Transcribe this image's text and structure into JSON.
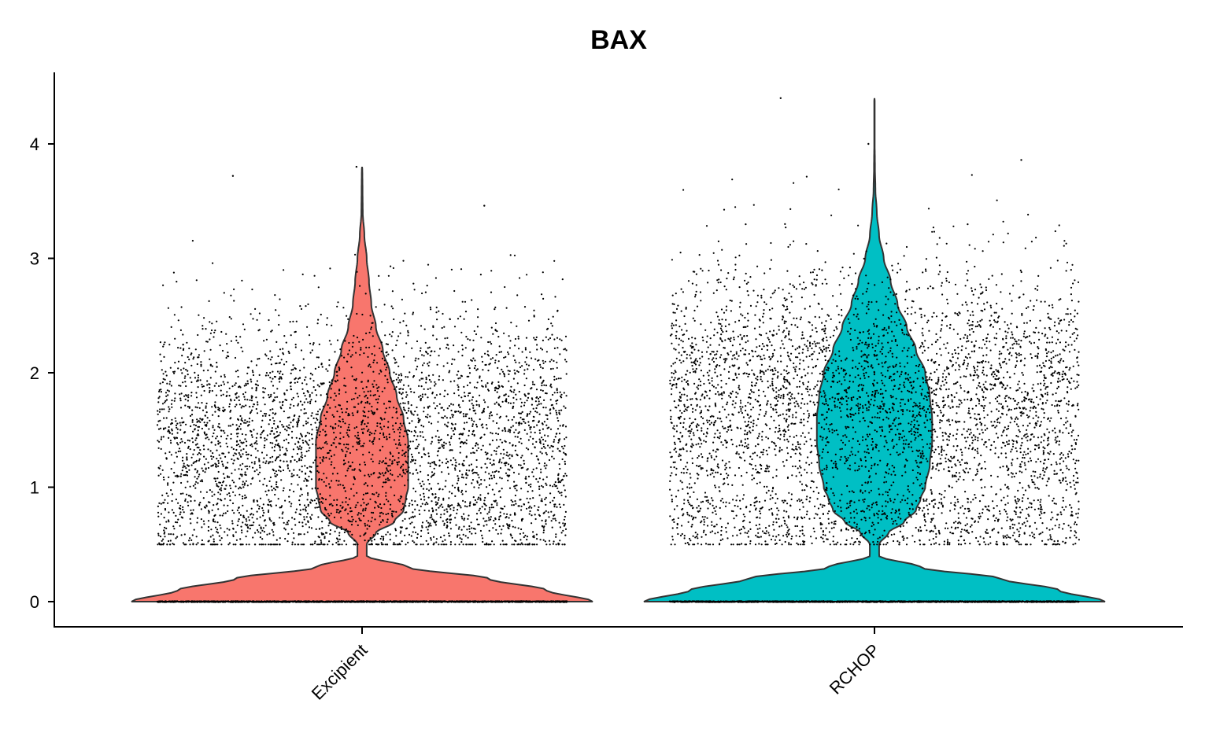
{
  "chart_data": {
    "type": "violin",
    "title": "BAX",
    "xlabel": "",
    "ylabel": "",
    "categories": [
      "Excipient",
      "RCHOP"
    ],
    "colors": {
      "Excipient": "#F8766D",
      "RCHOP": "#00BFC4"
    },
    "ylim": [
      -0.22,
      4.62
    ],
    "yticks": [
      0,
      1,
      2,
      3,
      4
    ],
    "ytick_labels": [
      "0",
      "1",
      "2",
      "3",
      "4"
    ],
    "grid": false,
    "legend": "none",
    "groups": [
      {
        "name": "Excipient",
        "max_value": 3.8,
        "density_profile": [
          [
            0.0,
            1.0
          ],
          [
            0.1,
            0.8
          ],
          [
            0.2,
            0.55
          ],
          [
            0.3,
            0.2
          ],
          [
            0.4,
            0.02
          ],
          [
            0.5,
            0.02
          ],
          [
            0.6,
            0.06
          ],
          [
            0.7,
            0.14
          ],
          [
            0.8,
            0.18
          ],
          [
            0.9,
            0.19
          ],
          [
            1.0,
            0.2
          ],
          [
            1.2,
            0.2
          ],
          [
            1.4,
            0.2
          ],
          [
            1.6,
            0.18
          ],
          [
            1.8,
            0.15
          ],
          [
            2.0,
            0.12
          ],
          [
            2.2,
            0.09
          ],
          [
            2.4,
            0.06
          ],
          [
            2.6,
            0.04
          ],
          [
            2.8,
            0.03
          ],
          [
            3.0,
            0.02
          ],
          [
            3.2,
            0.01
          ],
          [
            3.4,
            0.003
          ],
          [
            3.6,
            0.002
          ],
          [
            3.8,
            0.001
          ]
        ],
        "points": {
          "zero_count": 1800,
          "nonzero_count": 4200,
          "mean": 1.45,
          "sd": 0.55,
          "min": 0.5,
          "max": 3.8
        }
      },
      {
        "name": "RCHOP",
        "max_value": 4.4,
        "density_profile": [
          [
            0.0,
            1.0
          ],
          [
            0.1,
            0.8
          ],
          [
            0.2,
            0.55
          ],
          [
            0.3,
            0.2
          ],
          [
            0.4,
            0.02
          ],
          [
            0.5,
            0.02
          ],
          [
            0.6,
            0.06
          ],
          [
            0.7,
            0.13
          ],
          [
            0.8,
            0.18
          ],
          [
            0.9,
            0.2
          ],
          [
            1.0,
            0.22
          ],
          [
            1.2,
            0.24
          ],
          [
            1.4,
            0.25
          ],
          [
            1.6,
            0.25
          ],
          [
            1.8,
            0.24
          ],
          [
            2.0,
            0.22
          ],
          [
            2.2,
            0.18
          ],
          [
            2.4,
            0.14
          ],
          [
            2.6,
            0.1
          ],
          [
            2.8,
            0.07
          ],
          [
            3.0,
            0.04
          ],
          [
            3.2,
            0.02
          ],
          [
            3.4,
            0.01
          ],
          [
            3.6,
            0.004
          ],
          [
            3.8,
            0.002
          ],
          [
            4.0,
            0.001
          ],
          [
            4.4,
            0.001
          ]
        ],
        "points": {
          "zero_count": 1800,
          "nonzero_count": 4600,
          "mean": 1.75,
          "sd": 0.6,
          "min": 0.5,
          "max": 4.4
        }
      }
    ]
  }
}
